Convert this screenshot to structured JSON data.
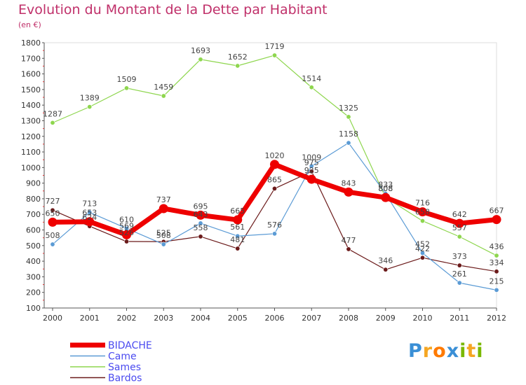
{
  "title": "Evolution du Montant de la Dette par Habitant",
  "subtitle": "(en €)",
  "logo": {
    "text": "Proxiti",
    "colors": [
      "#3a8fd6",
      "#f5a623",
      "#ff7a00",
      "#3a8fd6",
      "#7ab800",
      "#f5a623",
      "#7ab800"
    ]
  },
  "chart_data": {
    "type": "line",
    "x": [
      "2000",
      "2001",
      "2002",
      "2003",
      "2004",
      "2005",
      "2006",
      "2007",
      "2008",
      "2009",
      "2010",
      "2011",
      "2012"
    ],
    "ylim": [
      100,
      1800
    ],
    "yticks": [
      100,
      200,
      300,
      400,
      500,
      600,
      700,
      800,
      900,
      1000,
      1100,
      1200,
      1300,
      1400,
      1500,
      1600,
      1700,
      1800
    ],
    "grid": false,
    "legend_position": "bottom-left",
    "series": [
      {
        "name": "Sames",
        "color": "#8ed64e",
        "values": [
          1287,
          1389,
          1509,
          1459,
          1693,
          1652,
          1719,
          1514,
          1325,
          808,
          658,
          557,
          436
        ]
      },
      {
        "name": "Bardos",
        "color": "#6b1a1a",
        "values": [
          727,
          624,
          526,
          525,
          558,
          481,
          865,
          975,
          477,
          346,
          422,
          373,
          334
        ]
      },
      {
        "name": "Came",
        "color": "#5b9bd5",
        "values": [
          508,
          713,
          610,
          508,
          643,
          561,
          576,
          1009,
          1158,
          833,
          452,
          261,
          215
        ]
      },
      {
        "name": "BIDACHE",
        "color": "#ee0000",
        "values": [
          650,
          653,
          569,
          737,
          695,
          665,
          1020,
          925,
          843,
          808,
          716,
          642,
          667
        ]
      }
    ]
  }
}
